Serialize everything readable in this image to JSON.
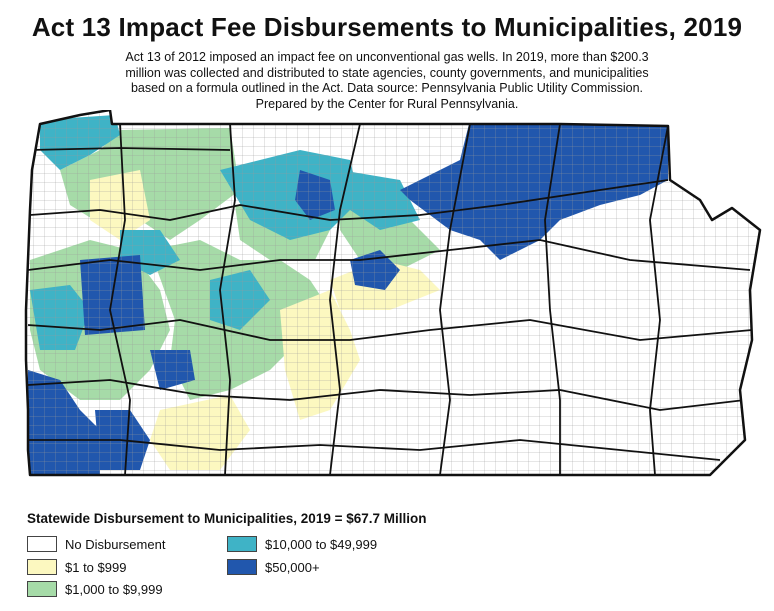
{
  "title": "Act 13 Impact Fee Disbursements to Municipalities, 2019",
  "subtitle": [
    "Act 13 of 2012 imposed an impact fee on unconventional gas wells. In 2019, more than $200.3",
    "million was collected and distributed to state agencies, county governments, and municipalities",
    "based on a formula outlined in the Act. Data source: Pennsylvania Public Utility Commission.",
    "Prepared by the Center for Rural Pennsylvania."
  ],
  "statewide": "Statewide Disbursement to Municipalities, 2019 = $67.7 Million",
  "legend": [
    {
      "label": "No Disbursement",
      "color": "#ffffff"
    },
    {
      "label": "$1 to $999",
      "color": "#fcf8c0"
    },
    {
      "label": "$1,000 to $9,999",
      "color": "#a6dba8"
    },
    {
      "label": "$10,000 to $49,999",
      "color": "#3fb3c6"
    },
    {
      "label": "$50,000+",
      "color": "#2157ad"
    }
  ]
}
